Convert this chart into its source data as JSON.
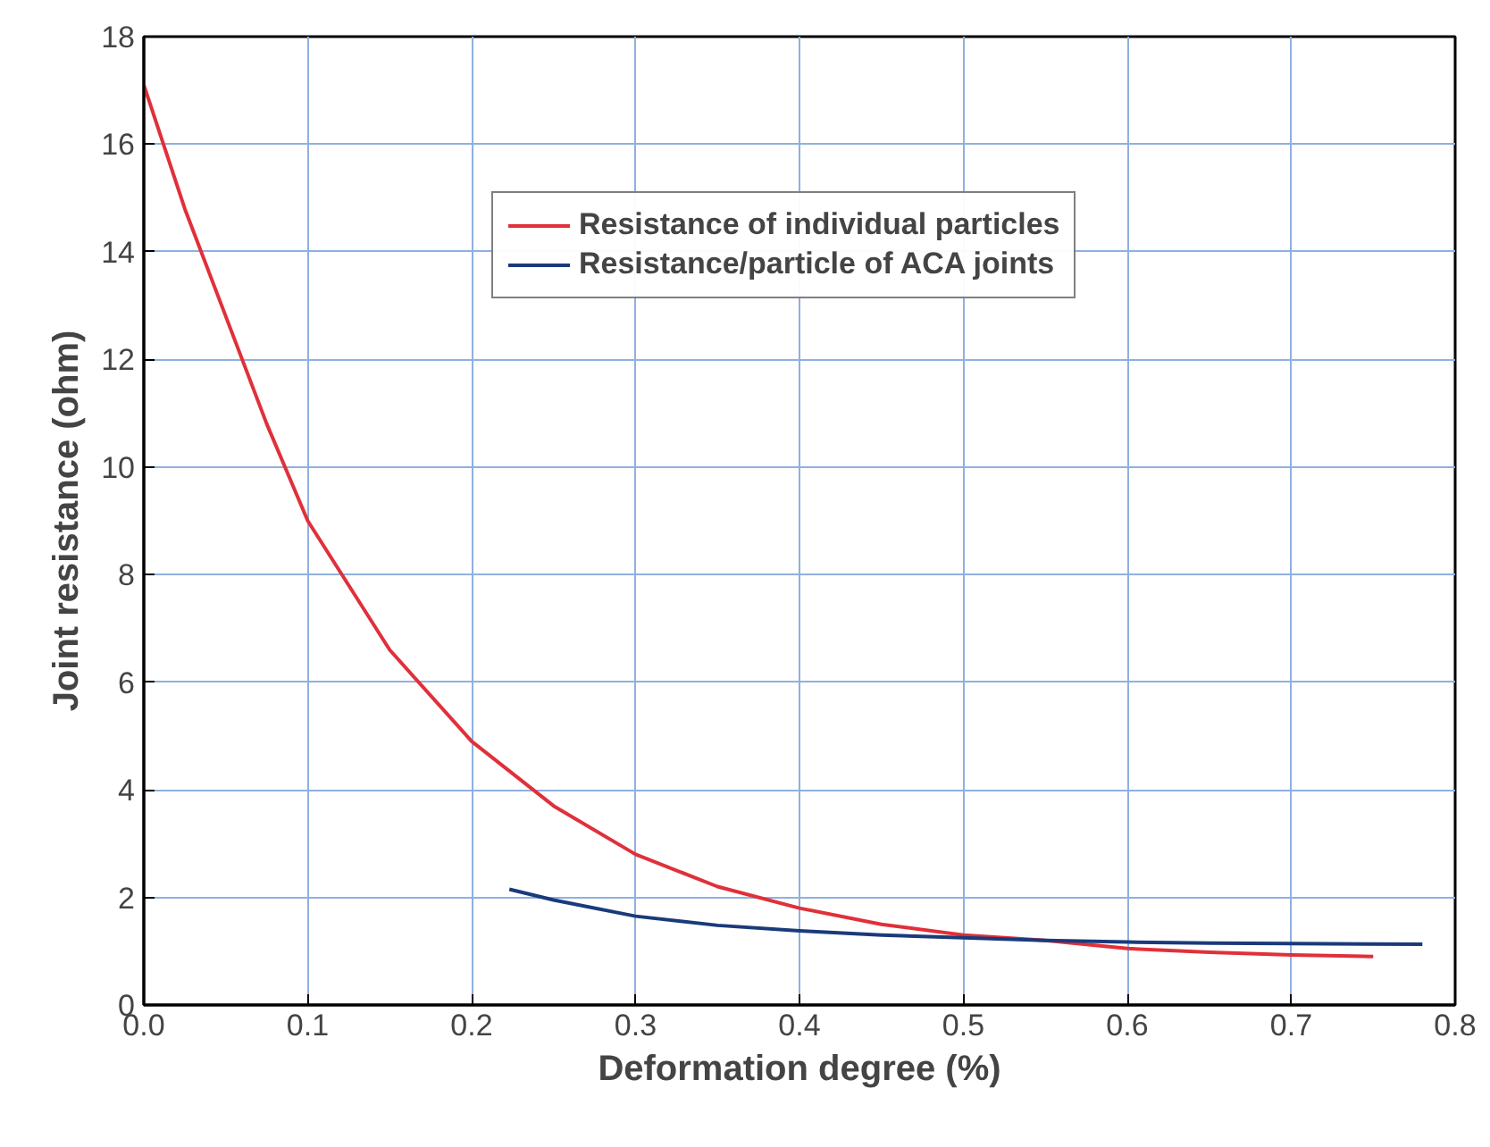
{
  "chart_data": {
    "type": "line",
    "xlabel": "Deformation degree (%)",
    "ylabel": "Joint resistance (ohm)",
    "xlim": [
      0,
      0.8
    ],
    "xticks": [
      {
        "value": 0,
        "label": "0.0"
      },
      0.1,
      0.2,
      0.3,
      0.4,
      0.5,
      0.6,
      0.7,
      0.8
    ],
    "ylim": [
      0,
      18
    ],
    "yticks": [
      0,
      2,
      4,
      6,
      8,
      10,
      12,
      14,
      16,
      18
    ],
    "grid": true,
    "legend": "top",
    "marker": "none",
    "line_style": "solid",
    "series": [
      {
        "name": "Resistance of individual particles",
        "color": "#e0303a",
        "x": [
          0,
          0.025,
          0.05,
          0.075,
          0.1,
          0.15,
          0.2,
          0.25,
          0.3,
          0.35,
          0.4,
          0.45,
          0.5,
          0.55,
          0.6,
          0.65,
          0.7,
          0.75
        ],
        "values": [
          17.1,
          14.8,
          12.8,
          10.8,
          9.0,
          6.6,
          4.9,
          3.7,
          2.8,
          2.2,
          1.8,
          1.5,
          1.3,
          1.2,
          1.05,
          0.98,
          0.93,
          0.9
        ]
      },
      {
        "name": "Resistance/particle of ACA joints",
        "color": "#1a3a7a",
        "x": [
          0.223,
          0.25,
          0.3,
          0.35,
          0.4,
          0.45,
          0.5,
          0.55,
          0.6,
          0.65,
          0.7,
          0.78
        ],
        "values": [
          2.15,
          1.95,
          1.65,
          1.48,
          1.38,
          1.3,
          1.25,
          1.2,
          1.17,
          1.15,
          1.14,
          1.13
        ]
      }
    ]
  }
}
